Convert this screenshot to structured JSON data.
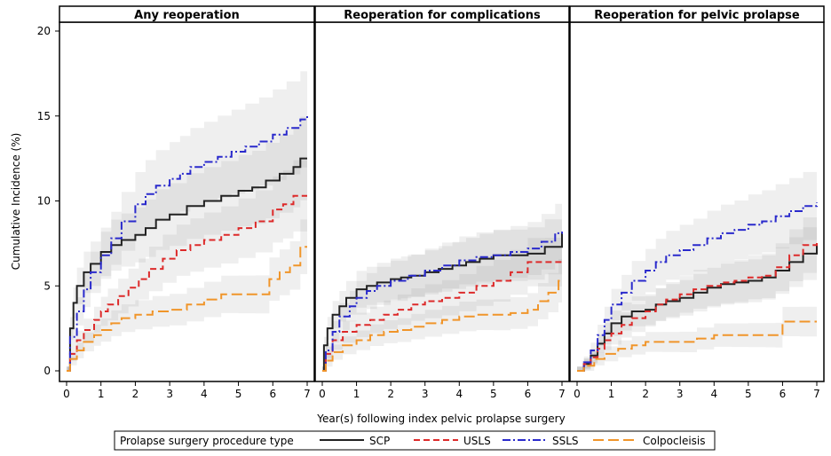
{
  "chart_data": {
    "type": "line",
    "step": true,
    "y_axis_label": "Cumulative Incidence (%)",
    "x_axis_label": "Year(s) following index pelvic prolapse surgery",
    "x_ticks": [
      0,
      1,
      2,
      3,
      4,
      5,
      6,
      7
    ],
    "y_ticks": [
      0,
      5,
      10,
      15,
      20
    ],
    "xlim": [
      0,
      7
    ],
    "ylim": [
      0,
      20
    ],
    "grid": false,
    "legend": {
      "title": "Prolapse surgery procedure type",
      "placement": "bottom",
      "entries": [
        "SCP",
        "USLS",
        "SSLS",
        "Colpocleisis"
      ]
    },
    "series_styles": {
      "SCP": {
        "color": "#222222",
        "dash": ""
      },
      "USLS": {
        "color": "#dd2a2a",
        "dash": "7,4"
      },
      "SSLS": {
        "color": "#2a2acc",
        "dash": "9,3,2,3"
      },
      "Colpocleisis": {
        "color": "#f0952a",
        "dash": "12,5"
      }
    },
    "panels": [
      {
        "title": "Any reoperation",
        "series": [
          {
            "name": "SCP",
            "x": [
              0,
              0.1,
              0.2,
              0.3,
              0.5,
              0.7,
              1,
              1.3,
              1.6,
              2,
              2.3,
              2.6,
              3,
              3.5,
              4,
              4.5,
              5,
              5.4,
              5.8,
              6.2,
              6.6,
              6.8,
              7
            ],
            "y": [
              0,
              2.5,
              4,
              5,
              5.8,
              6.3,
              7,
              7.4,
              7.7,
              8,
              8.4,
              8.9,
              9.2,
              9.7,
              10,
              10.3,
              10.6,
              10.8,
              11.2,
              11.6,
              12,
              12.5,
              12.5
            ]
          },
          {
            "name": "USLS",
            "x": [
              0,
              0.1,
              0.3,
              0.5,
              0.8,
              1,
              1.2,
              1.5,
              1.8,
              2.1,
              2.4,
              2.8,
              3.2,
              3.6,
              4,
              4.5,
              5,
              5.5,
              6,
              6.3,
              6.6,
              7
            ],
            "y": [
              0,
              1,
              1.8,
              2.4,
              3,
              3.5,
              3.9,
              4.4,
              4.9,
              5.4,
              6,
              6.6,
              7.1,
              7.4,
              7.7,
              8,
              8.4,
              8.8,
              9.5,
              9.8,
              10.3,
              10.3
            ]
          },
          {
            "name": "SSLS",
            "x": [
              0,
              0.1,
              0.3,
              0.5,
              0.7,
              1,
              1.3,
              1.6,
              2,
              2.3,
              2.6,
              3,
              3.3,
              3.6,
              4,
              4.4,
              4.8,
              5.2,
              5.6,
              6,
              6.4,
              6.8,
              7
            ],
            "y": [
              0,
              2,
              3.5,
              4.8,
              5.8,
              6.8,
              7.8,
              8.8,
              9.8,
              10.4,
              10.9,
              11.3,
              11.6,
              12,
              12.3,
              12.6,
              12.9,
              13.2,
              13.5,
              13.9,
              14.3,
              14.8,
              15
            ]
          },
          {
            "name": "Colpocleisis",
            "x": [
              0,
              0.1,
              0.3,
              0.5,
              0.8,
              1,
              1.3,
              1.6,
              2,
              2.5,
              3,
              3.5,
              4,
              4.5,
              5,
              5.5,
              5.9,
              6.2,
              6.5,
              6.8,
              7
            ],
            "y": [
              0,
              0.7,
              1.2,
              1.7,
              2.1,
              2.4,
              2.8,
              3.1,
              3.3,
              3.5,
              3.6,
              3.9,
              4.2,
              4.5,
              4.5,
              4.5,
              5.4,
              5.8,
              6.2,
              7.3,
              7.3
            ]
          }
        ]
      },
      {
        "title": "Reoperation for complications",
        "series": [
          {
            "name": "SCP",
            "x": [
              0,
              0.05,
              0.15,
              0.3,
              0.5,
              0.7,
              1,
              1.3,
              1.6,
              2,
              2.3,
              2.6,
              3,
              3.4,
              3.8,
              4.2,
              4.6,
              5,
              5.5,
              6,
              6.5,
              7
            ],
            "y": [
              0,
              1.5,
              2.5,
              3.3,
              3.8,
              4.3,
              4.8,
              5,
              5.2,
              5.4,
              5.5,
              5.6,
              5.8,
              6,
              6.2,
              6.4,
              6.6,
              6.8,
              6.8,
              6.9,
              7.3,
              8.1
            ]
          },
          {
            "name": "USLS",
            "x": [
              0,
              0.1,
              0.3,
              0.6,
              1,
              1.4,
              1.8,
              2.2,
              2.6,
              3,
              3.5,
              4,
              4.5,
              5,
              5.5,
              6,
              6.5,
              7
            ],
            "y": [
              0,
              1,
              1.8,
              2.3,
              2.7,
              3,
              3.3,
              3.6,
              3.9,
              4.1,
              4.3,
              4.6,
              5,
              5.3,
              5.8,
              6.4,
              6.4,
              6.4
            ]
          },
          {
            "name": "SSLS",
            "x": [
              0,
              0.1,
              0.3,
              0.5,
              0.8,
              1,
              1.3,
              1.6,
              2,
              2.5,
              3,
              3.5,
              4,
              4.5,
              5,
              5.5,
              6,
              6.4,
              6.8,
              7
            ],
            "y": [
              0,
              1.2,
              2.3,
              3.2,
              3.8,
              4.3,
              4.7,
              5,
              5.3,
              5.6,
              5.9,
              6.2,
              6.5,
              6.7,
              6.8,
              7,
              7.2,
              7.6,
              8.1,
              8.2
            ]
          },
          {
            "name": "Colpocleisis",
            "x": [
              0,
              0.1,
              0.3,
              0.6,
              1,
              1.4,
              1.8,
              2.2,
              2.6,
              3,
              3.5,
              4,
              4.5,
              5,
              5.5,
              6,
              6.3,
              6.6,
              6.9,
              7
            ],
            "y": [
              0,
              0.6,
              1.1,
              1.5,
              1.8,
              2.1,
              2.3,
              2.4,
              2.6,
              2.8,
              3,
              3.2,
              3.3,
              3.3,
              3.4,
              3.6,
              4.1,
              4.6,
              5.3,
              5.3
            ]
          }
        ]
      },
      {
        "title": "Reoperation for pelvic prolapse",
        "series": [
          {
            "name": "SCP",
            "x": [
              0,
              0.2,
              0.4,
              0.6,
              0.8,
              1,
              1.3,
              1.6,
              2,
              2.3,
              2.6,
              3,
              3.4,
              3.8,
              4.2,
              4.6,
              5,
              5.4,
              5.8,
              6.2,
              6.6,
              7
            ],
            "y": [
              0,
              0.4,
              0.9,
              1.6,
              2.2,
              2.8,
              3.2,
              3.5,
              3.6,
              3.9,
              4.1,
              4.3,
              4.6,
              4.9,
              5.1,
              5.2,
              5.3,
              5.5,
              5.9,
              6.4,
              6.9,
              7.4
            ]
          },
          {
            "name": "USLS",
            "x": [
              0,
              0.2,
              0.4,
              0.6,
              0.8,
              1,
              1.3,
              1.6,
              2,
              2.3,
              2.6,
              3,
              3.4,
              3.8,
              4.2,
              4.6,
              5,
              5.4,
              5.8,
              6.2,
              6.6,
              7
            ],
            "y": [
              0,
              0.4,
              0.8,
              1.3,
              1.8,
              2.2,
              2.7,
              3.1,
              3.5,
              3.9,
              4.2,
              4.5,
              4.8,
              5,
              5.2,
              5.3,
              5.5,
              5.6,
              6.1,
              6.8,
              7.4,
              7.7
            ]
          },
          {
            "name": "SSLS",
            "x": [
              0,
              0.2,
              0.4,
              0.6,
              0.8,
              1,
              1.3,
              1.6,
              2,
              2.3,
              2.6,
              3,
              3.4,
              3.8,
              4.2,
              4.6,
              5,
              5.4,
              5.8,
              6.2,
              6.6,
              7
            ],
            "y": [
              0,
              0.5,
              1.2,
              2.1,
              3,
              3.9,
              4.6,
              5.3,
              5.9,
              6.4,
              6.8,
              7.1,
              7.4,
              7.8,
              8.1,
              8.3,
              8.6,
              8.8,
              9.1,
              9.4,
              9.7,
              9.9
            ]
          },
          {
            "name": "Colpocleisis",
            "x": [
              0,
              0.2,
              0.5,
              0.8,
              1.2,
              1.6,
              2,
              2.5,
              3,
              3.5,
              4,
              4.5,
              5,
              5.5,
              5.8,
              6,
              6.5,
              7
            ],
            "y": [
              0,
              0.3,
              0.7,
              1,
              1.3,
              1.5,
              1.7,
              1.7,
              1.7,
              1.9,
              2.1,
              2.1,
              2.1,
              2.1,
              2.1,
              2.9,
              2.9,
              2.9
            ]
          }
        ]
      }
    ]
  }
}
